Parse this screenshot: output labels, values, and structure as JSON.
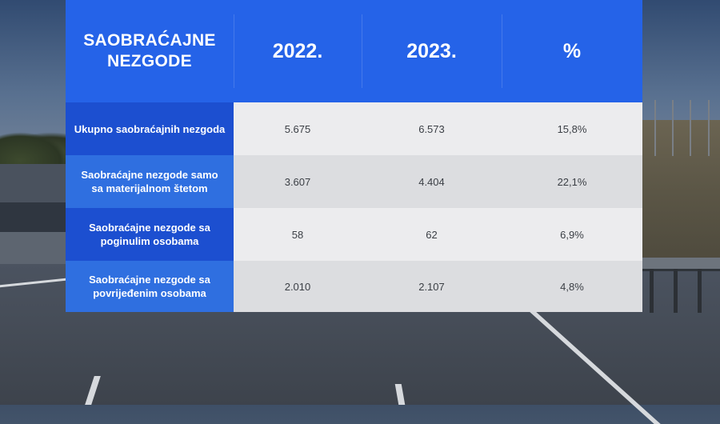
{
  "table": {
    "header": {
      "title_line1": "SAOBRAĆAJNE",
      "title_line2": "NEZGODE",
      "col_2022": "2022.",
      "col_2023": "2023.",
      "col_pct": "%"
    },
    "rows": [
      {
        "label_line1": "Ukupno saobraćajnih nezgoda",
        "label_line2": "",
        "v2022": "5.675",
        "v2023": "6.573",
        "pct": "15,8%"
      },
      {
        "label_line1": "Saobraćajne nezgode samo",
        "label_line2": "sa materijalnom štetom",
        "v2022": "3.607",
        "v2023": "4.404",
        "pct": "22,1%"
      },
      {
        "label_line1": "Saobraćajne nezgode sa",
        "label_line2": "poginulim osobama",
        "v2022": "58",
        "v2023": "62",
        "pct": "6,9%"
      },
      {
        "label_line1": "Saobraćajne nezgode sa",
        "label_line2": "povrijeđenim osobama",
        "v2022": "2.010",
        "v2023": "2.107",
        "pct": "4,8%"
      }
    ]
  },
  "colors": {
    "header_blue": "#2563e8",
    "label_blue_dark": "#1c4fd0",
    "label_blue_light": "#2f6fe0",
    "cell_light": "#ececee",
    "cell_mid": "#dcdde0"
  }
}
